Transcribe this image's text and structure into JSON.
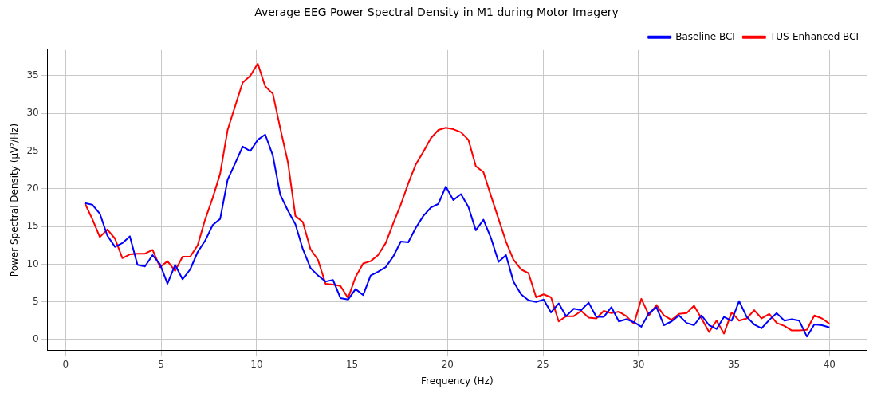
{
  "chart_data": {
    "type": "line",
    "title": "Average EEG Power Spectral Density in M1 during Motor Imagery",
    "xlabel": "Frequency (Hz)",
    "ylabel": "Power Spectral Density (μV²/Hz)",
    "x": [
      1.0,
      1.39,
      1.79,
      2.18,
      2.58,
      2.97,
      3.36,
      3.76,
      4.15,
      4.55,
      4.94,
      5.33,
      5.73,
      6.12,
      6.52,
      6.91,
      7.3,
      7.7,
      8.09,
      8.48,
      8.88,
      9.27,
      9.67,
      10.06,
      10.45,
      10.85,
      11.24,
      11.64,
      12.03,
      12.42,
      12.82,
      13.21,
      13.61,
      14.0,
      14.39,
      14.79,
      15.18,
      15.58,
      15.97,
      16.36,
      16.76,
      17.15,
      17.55,
      17.94,
      18.33,
      18.73,
      19.12,
      19.52,
      19.91,
      20.3,
      20.7,
      21.09,
      21.48,
      21.88,
      22.27,
      22.67,
      23.06,
      23.45,
      23.85,
      24.24,
      24.64,
      25.03,
      25.42,
      25.82,
      26.21,
      26.61,
      27.0,
      27.39,
      27.79,
      28.18,
      28.58,
      28.97,
      29.36,
      29.76,
      30.15,
      30.55,
      30.94,
      31.33,
      31.73,
      32.12,
      32.52,
      32.91,
      33.3,
      33.7,
      34.09,
      34.48,
      34.88,
      35.27,
      35.67,
      36.06,
      36.45,
      36.85,
      37.24,
      37.64,
      38.03,
      38.42,
      38.82,
      39.21,
      39.61,
      40.0
    ],
    "series": [
      {
        "name": "Baseline BCI",
        "color": "#0000ff",
        "values": [
          18.1,
          17.9,
          16.7,
          13.8,
          12.3,
          12.8,
          13.7,
          9.9,
          9.7,
          11.2,
          10.0,
          7.4,
          9.9,
          8.0,
          9.3,
          11.6,
          13.1,
          15.2,
          16.0,
          21.2,
          23.4,
          25.6,
          25.0,
          26.5,
          27.2,
          24.4,
          19.2,
          17.1,
          15.3,
          12.0,
          9.5,
          8.5,
          7.7,
          7.9,
          5.5,
          5.3,
          6.7,
          5.9,
          8.5,
          9.0,
          9.6,
          11.0,
          13.0,
          12.9,
          14.8,
          16.4,
          17.5,
          18.0,
          20.3,
          18.5,
          19.3,
          17.6,
          14.5,
          15.9,
          13.5,
          10.3,
          11.2,
          7.7,
          6.0,
          5.2,
          5.0,
          5.3,
          3.6,
          4.8,
          3.1,
          4.1,
          3.9,
          4.9,
          3.0,
          3.0,
          4.3,
          2.4,
          2.7,
          2.3,
          1.7,
          3.5,
          4.3,
          1.9,
          2.4,
          3.2,
          2.2,
          1.9,
          3.2,
          1.9,
          1.4,
          3.0,
          2.5,
          5.1,
          3.0,
          2.0,
          1.5,
          2.6,
          3.5,
          2.5,
          2.7,
          2.5,
          0.4,
          2.0,
          1.9,
          1.6
        ]
      },
      {
        "name": "TUS-Enhanced BCI",
        "color": "#ff0000",
        "values": [
          18.1,
          16.0,
          13.6,
          14.6,
          13.4,
          10.8,
          11.3,
          11.4,
          11.4,
          11.9,
          9.6,
          10.4,
          9.1,
          11.0,
          11.0,
          12.5,
          15.9,
          18.8,
          22.0,
          27.8,
          31.0,
          34.1,
          35.0,
          36.6,
          33.6,
          32.6,
          28.0,
          23.5,
          16.4,
          15.6,
          12.0,
          10.6,
          7.4,
          7.3,
          7.1,
          5.5,
          8.3,
          10.1,
          10.4,
          11.2,
          12.8,
          15.4,
          17.9,
          20.7,
          23.2,
          24.9,
          26.7,
          27.8,
          28.1,
          27.9,
          27.5,
          26.5,
          23.0,
          22.2,
          19.1,
          16.0,
          13.0,
          10.6,
          9.3,
          8.8,
          5.6,
          6.0,
          5.6,
          2.4,
          3.1,
          3.1,
          3.8,
          2.9,
          2.8,
          3.8,
          3.5,
          3.7,
          3.1,
          2.1,
          5.4,
          3.2,
          4.6,
          3.2,
          2.6,
          3.4,
          3.5,
          4.5,
          2.8,
          1.0,
          2.5,
          0.8,
          3.6,
          2.5,
          2.8,
          3.9,
          2.8,
          3.4,
          2.2,
          1.8,
          1.2,
          1.2,
          1.3,
          3.2,
          2.8,
          2.1
        ]
      }
    ],
    "xlim": [
      -0.95,
      41.95
    ],
    "xticks": [
      0,
      5,
      10,
      15,
      20,
      25,
      30,
      35,
      40
    ],
    "ylim": [
      -1.4,
      38.4
    ],
    "yticks": [
      0,
      5,
      10,
      15,
      20,
      25,
      30,
      35
    ],
    "grid": true,
    "legend": "top right",
    "marker": "none",
    "line_style": "solid"
  }
}
